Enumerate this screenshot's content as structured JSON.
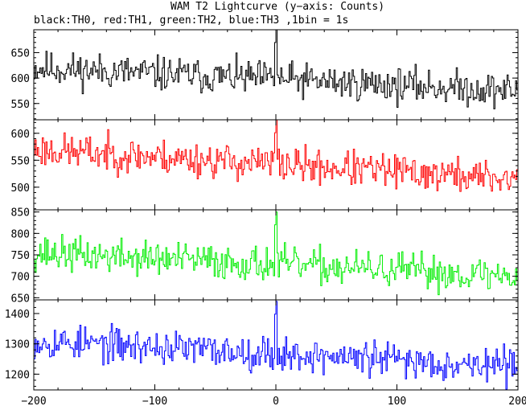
{
  "title": "WAM T2 Lightcurve (y−axis: Counts)",
  "subtitle": "black:TH0, red:TH1, green:TH2, blue:TH3 ,1bin = 1s",
  "chart_data": {
    "type": "line",
    "title": "WAM T2 Lightcurve (y−axis: Counts)",
    "subtitle": "black:TH0, red:TH1, green:TH2, blue:TH3 ,1bin = 1s",
    "xlabel": "",
    "ylabel": "",
    "x_range": [
      -200,
      200
    ],
    "x_step": 1,
    "x_ticks": [
      -200,
      -100,
      0,
      100,
      200
    ],
    "x_tick_labels": [
      "−200",
      "−100",
      "0",
      "100",
      "200"
    ],
    "grid": false,
    "series": [
      {
        "name": "TH0",
        "color": "#000000",
        "ylim": [
          518,
          695
        ],
        "y_ticks": [
          550,
          600,
          650
        ],
        "base_start": 620,
        "base_end": 575,
        "noise": 25,
        "seed": 11,
        "peak": 695
      },
      {
        "name": "TH1",
        "color": "#ff0000",
        "ylim": [
          458,
          625
        ],
        "y_ticks": [
          500,
          550,
          600
        ],
        "base_start": 570,
        "base_end": 515,
        "noise": 24,
        "seed": 23,
        "peak": 625
      },
      {
        "name": "TH2",
        "color": "#00ee00",
        "ylim": [
          645,
          855
        ],
        "y_ticks": [
          650,
          700,
          750,
          800,
          850
        ],
        "base_start": 755,
        "base_end": 700,
        "noise": 30,
        "seed": 37,
        "peak": 850
      },
      {
        "name": "TH3",
        "color": "#0000ff",
        "ylim": [
          1148,
          1445
        ],
        "y_ticks": [
          1200,
          1300,
          1400
        ],
        "base_start": 1310,
        "base_end": 1225,
        "noise": 42,
        "seed": 53,
        "peak": 1440
      }
    ]
  }
}
